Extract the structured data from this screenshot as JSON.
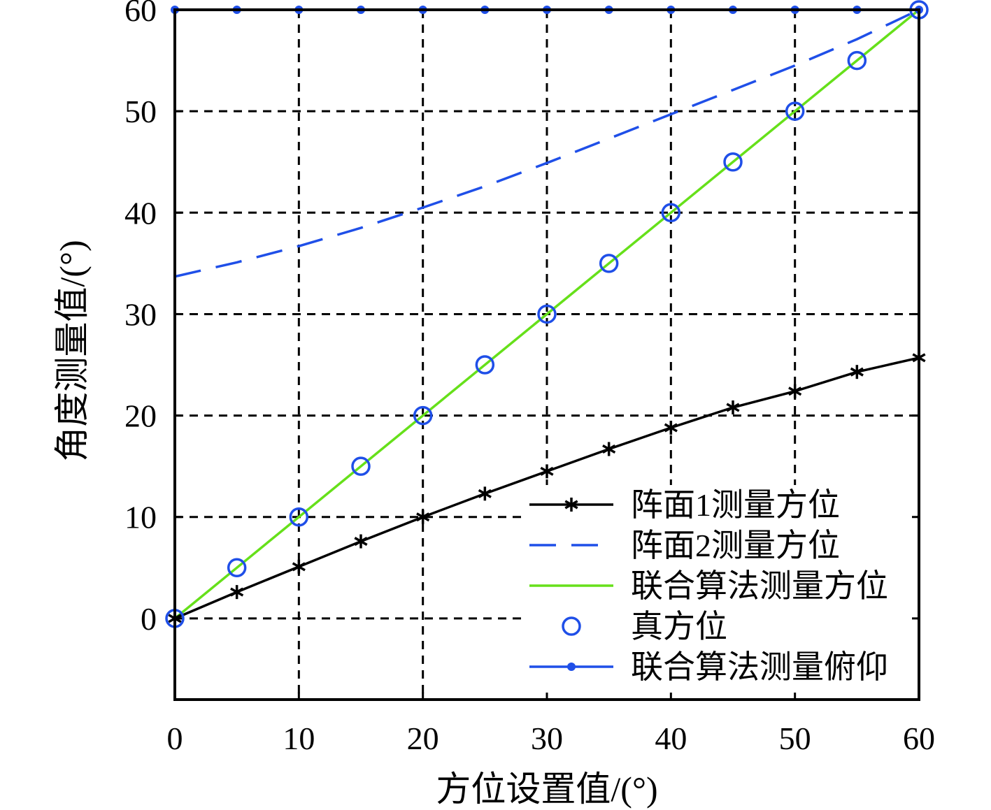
{
  "chart_data": {
    "type": "line",
    "xlabel": "方位设置值/(°)",
    "ylabel": "角度测量值/(°)",
    "xlim": [
      0,
      60
    ],
    "ylim": [
      -8,
      60
    ],
    "xticks": [
      0,
      10,
      20,
      30,
      40,
      50,
      60
    ],
    "yticks": [
      0,
      10,
      20,
      30,
      40,
      50,
      60
    ],
    "grid": true,
    "legend_position": "bottom-right",
    "series": [
      {
        "name": "阵面1测量方位",
        "color": "#000000",
        "line": "solid",
        "marker": "asterisk",
        "x": [
          0,
          5,
          10,
          15,
          20,
          25,
          30,
          35,
          40,
          45,
          50,
          55,
          60
        ],
        "y": [
          0,
          2.6,
          5.1,
          7.6,
          10.0,
          12.3,
          14.5,
          16.7,
          18.8,
          20.8,
          22.4,
          24.3,
          25.7
        ]
      },
      {
        "name": "阵面2测量方位",
        "color": "#1f4fe8",
        "line": "dashed",
        "marker": "none",
        "x": [
          0,
          5,
          10,
          15,
          20,
          25,
          30,
          35,
          40,
          45,
          50,
          55,
          60
        ],
        "y": [
          33.7,
          35.1,
          36.7,
          38.5,
          40.5,
          42.6,
          44.9,
          47.3,
          49.7,
          52.1,
          54.5,
          57.1,
          60.0
        ]
      },
      {
        "name": "联合算法测量方位",
        "color": "#66e01a",
        "line": "solid",
        "marker": "none",
        "x": [
          0,
          60
        ],
        "y": [
          0,
          60
        ]
      },
      {
        "name": "真方位",
        "color": "#1f4fe8",
        "line": "none",
        "marker": "circle",
        "x": [
          0,
          5,
          10,
          15,
          20,
          25,
          30,
          35,
          40,
          45,
          50,
          55,
          60
        ],
        "y": [
          0,
          5,
          10,
          15,
          20,
          25,
          30,
          35,
          40,
          45,
          50,
          55,
          60
        ]
      },
      {
        "name": "联合算法测量俯仰",
        "color": "#1f4fe8",
        "line": "solid",
        "marker": "dot",
        "x": [
          0,
          5,
          10,
          15,
          20,
          25,
          30,
          35,
          40,
          45,
          50,
          55,
          60
        ],
        "y": [
          60,
          60,
          60,
          60,
          60,
          60,
          60,
          60,
          60,
          60,
          60,
          60,
          60
        ]
      }
    ]
  }
}
